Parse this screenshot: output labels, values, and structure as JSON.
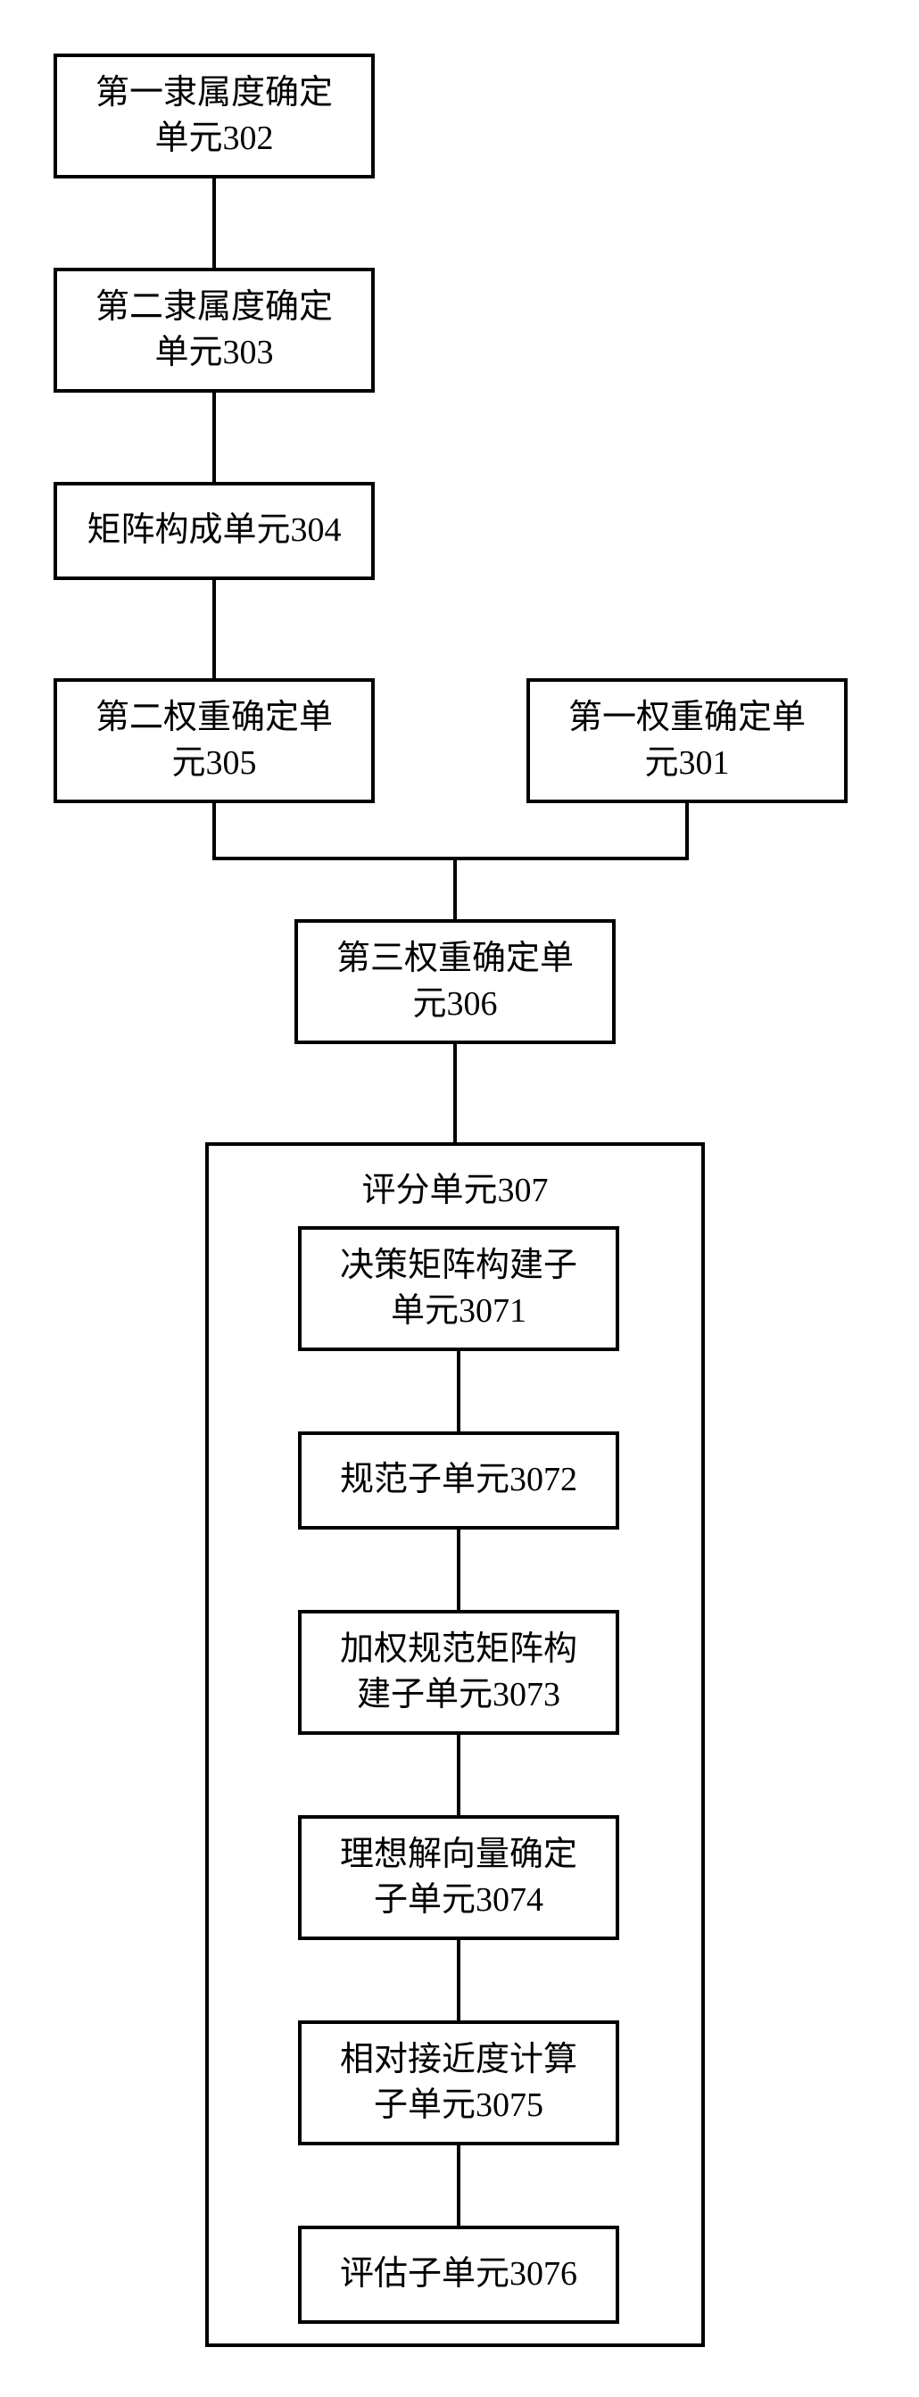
{
  "diagram": {
    "type": "flowchart",
    "background_color": "#ffffff",
    "border_color": "#000000",
    "font_size": 38,
    "line_width": 4,
    "nodes": {
      "n302": {
        "label": "第一隶属度确定\n单元302"
      },
      "n303": {
        "label": "第二隶属度确定\n单元303"
      },
      "n304": {
        "label": "矩阵构成单元304"
      },
      "n305": {
        "label": "第二权重确定单\n元305"
      },
      "n301": {
        "label": "第一权重确定单\n元301"
      },
      "n306": {
        "label": "第三权重确定单\n元306"
      },
      "n307_title": {
        "label": "评分单元307"
      },
      "n3071": {
        "label": "决策矩阵构建子\n单元3071"
      },
      "n3072": {
        "label": "规范子单元3072"
      },
      "n3073": {
        "label": "加权规范矩阵构\n建子单元3073"
      },
      "n3074": {
        "label": "理想解向量确定\n子单元3074"
      },
      "n3075": {
        "label": "相对接近度计算\n子单元3075"
      },
      "n3076": {
        "label": "评估子单元3076"
      }
    }
  }
}
